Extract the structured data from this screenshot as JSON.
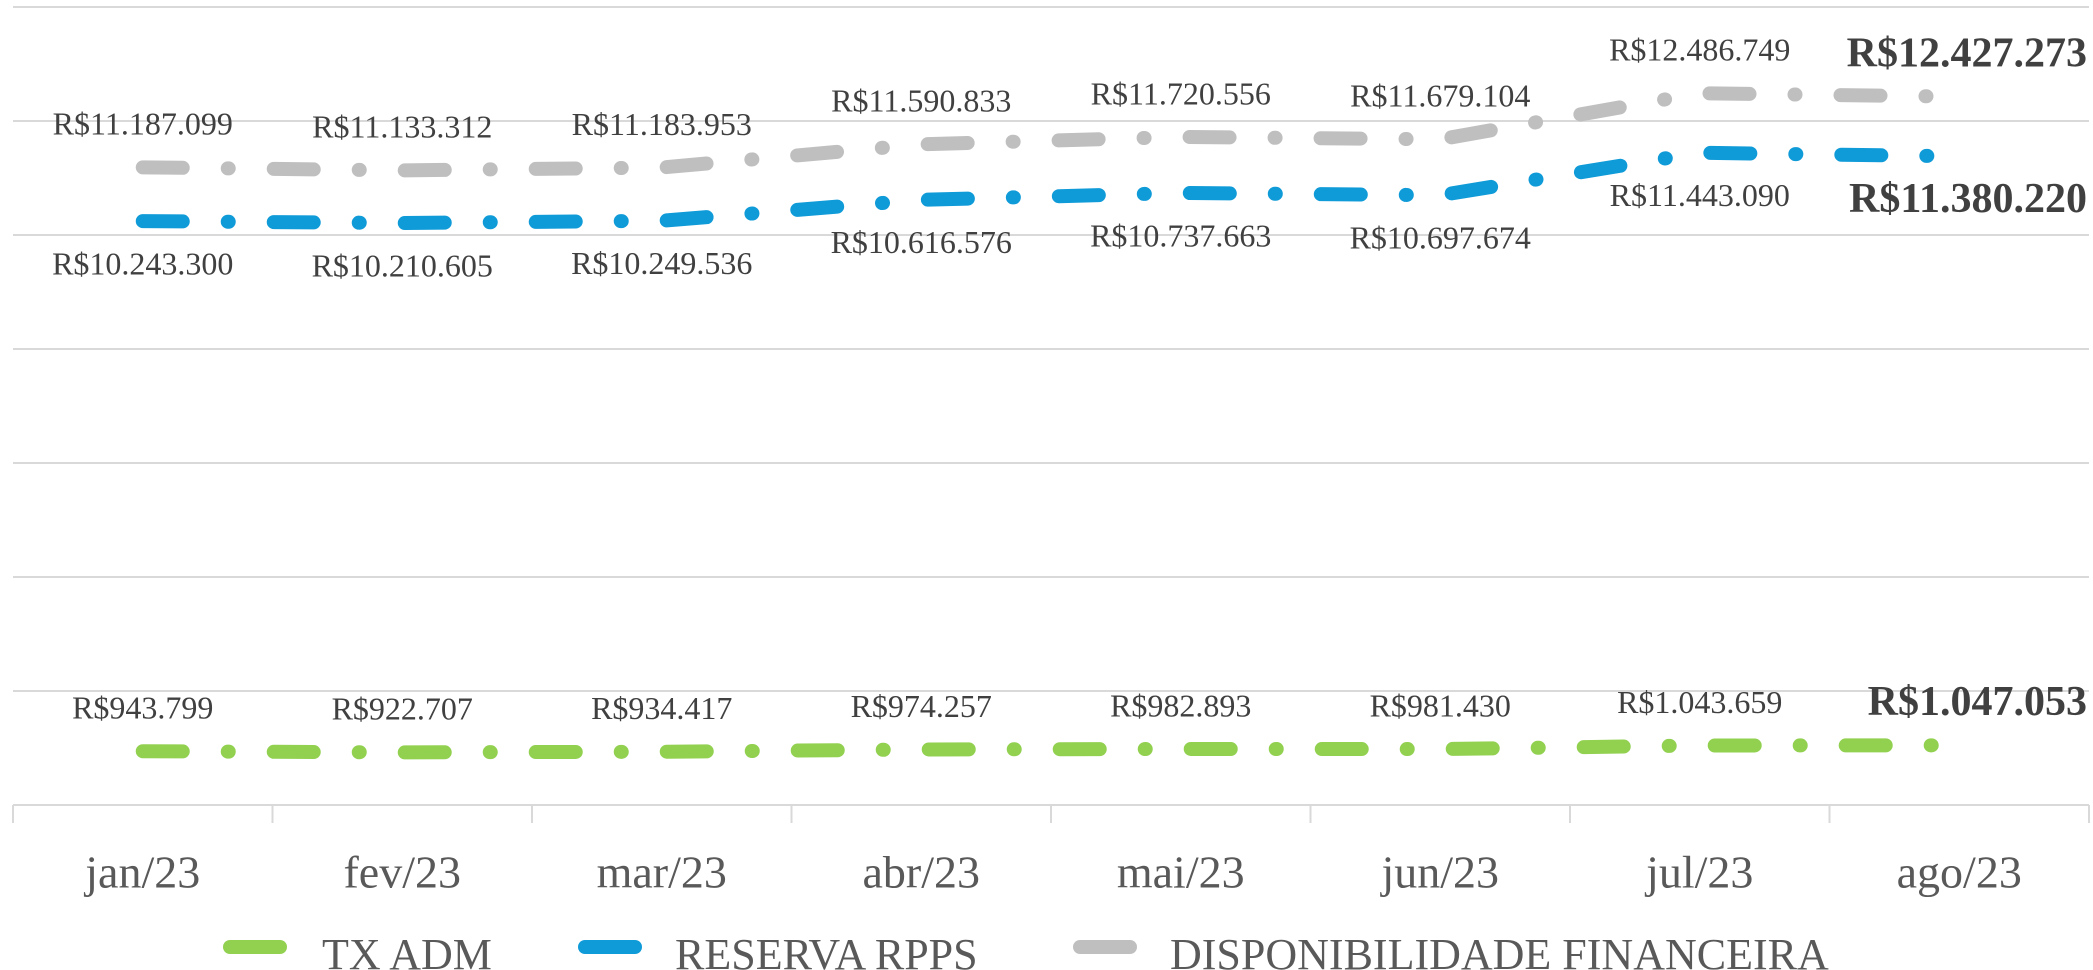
{
  "chart_data": {
    "type": "line",
    "categories": [
      "jan/23",
      "fev/23",
      "mar/23",
      "abr/23",
      "mai/23",
      "jun/23",
      "jul/23",
      "ago/23"
    ],
    "series": [
      {
        "name": "TX ADM",
        "color": "#92d050",
        "values": [
          943799,
          922707,
          934417,
          974257,
          982893,
          981430,
          1043659,
          1047053
        ],
        "value_labels": [
          "R$943.799",
          "R$922.707",
          "R$934.417",
          "R$974.257",
          "R$982.893",
          "R$981.430",
          "R$1.043.659",
          "R$1.047.053"
        ]
      },
      {
        "name": "RESERVA RPPS",
        "color": "#0f9ad8",
        "values": [
          10243300,
          10210605,
          10249536,
          10616576,
          10737663,
          10697674,
          11443090,
          11380220
        ],
        "value_labels": [
          "R$10.243.300",
          "R$10.210.605",
          "R$10.249.536",
          "R$10.616.576",
          "R$10.737.663",
          "R$10.697.674",
          "R$11.443.090",
          "R$11.380.220"
        ]
      },
      {
        "name": "DISPONIBILIDADE FINANCEIRA",
        "color": "#bfbfbf",
        "values": [
          11187099,
          11133312,
          11183953,
          11590833,
          11720556,
          11679104,
          12486749,
          12427273
        ],
        "value_labels": [
          "R$11.187.099",
          "R$11.133.312",
          "R$11.183.953",
          "R$11.590.833",
          "R$11.720.556",
          "R$11.679.104",
          "R$12.486.749",
          "R$12.427.273"
        ]
      }
    ],
    "ylim": [
      0,
      14000000
    ],
    "yticks": [
      0,
      2000000,
      4000000,
      6000000,
      8000000,
      10000000,
      12000000,
      14000000
    ],
    "grid": true,
    "legend": "bottom"
  }
}
